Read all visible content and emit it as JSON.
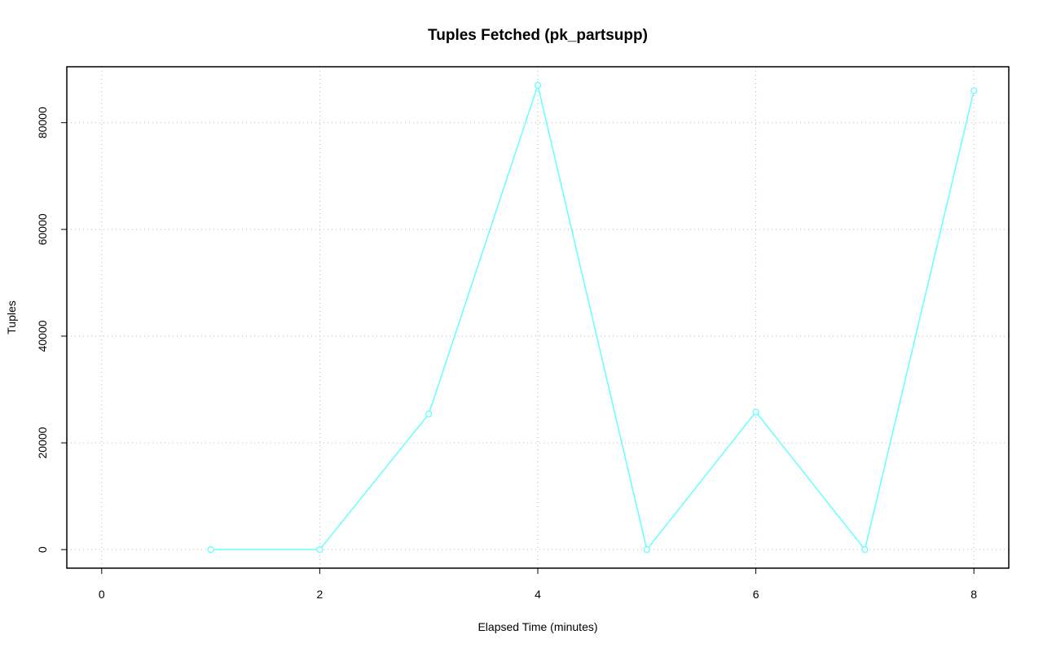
{
  "chart_data": {
    "type": "line",
    "title": "Tuples Fetched (pk_partsupp)",
    "x_label": "Elapsed Time (minutes)",
    "y_label": "Tuples",
    "x": [
      1,
      2,
      3,
      4,
      5,
      6,
      7,
      8
    ],
    "series": [
      {
        "color": "#66ffff",
        "values": [
          0,
          0,
          25400,
          87000,
          0,
          25800,
          0,
          86000
        ]
      }
    ],
    "xlim": [
      -0.32,
      8.32
    ],
    "xticks": [
      0,
      2,
      4,
      6,
      8
    ],
    "ylim": [
      -3480,
      90480
    ],
    "yticks": [
      0,
      20000,
      40000,
      60000,
      80000
    ],
    "grid": true
  }
}
